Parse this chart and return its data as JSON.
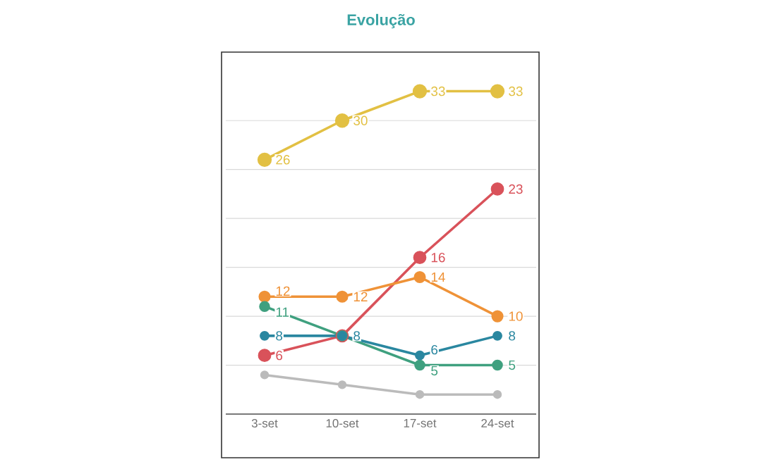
{
  "chart_data": {
    "type": "line",
    "title": "Evolução",
    "categories": [
      "3-set",
      "10-set",
      "17-set",
      "24-set"
    ],
    "ylim": [
      0,
      37
    ],
    "yticks": [
      {
        "value": 5,
        "label": null
      },
      {
        "value": 10,
        "label": null
      },
      {
        "value": 15,
        "label": null
      },
      {
        "value": 20,
        "label": null
      },
      {
        "value": 25,
        "label": null
      },
      {
        "value": 30,
        "label": null
      }
    ],
    "tick_labels": "x",
    "grid": "y",
    "marker": "circle",
    "line_style": "solid",
    "series": [
      {
        "color": "#e2c043",
        "values": [
          26,
          30,
          33,
          33
        ],
        "value_labels": [
          "26",
          "30",
          "33",
          "33"
        ]
      },
      {
        "color": "#d9525a",
        "values": [
          6,
          8,
          16,
          23
        ],
        "value_labels": [
          "6",
          null,
          "16",
          "23"
        ]
      },
      {
        "color": "#ef9237",
        "values": [
          12,
          12,
          14,
          10
        ],
        "value_labels": [
          "12",
          "12",
          "14",
          "10"
        ]
      },
      {
        "color": "#3fa07f",
        "values": [
          11,
          8,
          5,
          5
        ],
        "value_labels": [
          "11",
          null,
          "5",
          "5"
        ]
      },
      {
        "color": "#2a87a0",
        "values": [
          8,
          8,
          6,
          8
        ],
        "value_labels": [
          "8",
          "8",
          "6",
          "8"
        ]
      },
      {
        "color": "#bbbbbb",
        "values": [
          4,
          3,
          2,
          2
        ]
      }
    ]
  }
}
